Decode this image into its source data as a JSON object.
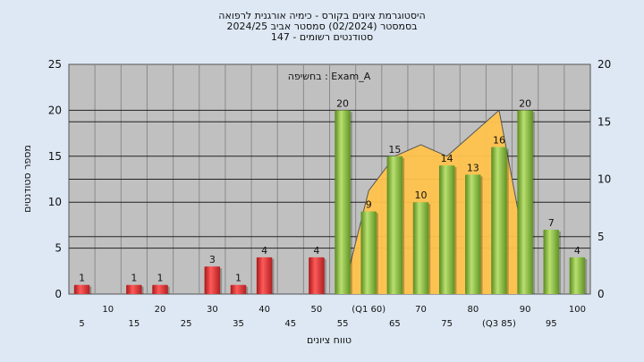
{
  "header": {
    "line1": "היסטוגרמת ציונים בקורס - כימיה אורגנית לרפואה",
    "line2": "בסמסטר  (02/2024)  סמסטר אביב 2024/25",
    "line3": "סטודנטים רשומים - 147"
  },
  "chart_data": {
    "type": "bar",
    "title": "",
    "annotation": "בחשיפה : Exam_A",
    "xlabel": "טווח ציונים",
    "ylabel": "מספר סטודנטים",
    "ylim": [
      0,
      25
    ],
    "y2lim": [
      0,
      20
    ],
    "yticks": [
      0,
      5,
      10,
      15,
      20,
      25
    ],
    "y2ticks": [
      0,
      5,
      10,
      15,
      20
    ],
    "categories": [
      "5",
      "10",
      "15",
      "20",
      "25",
      "30",
      "35",
      "40",
      "45",
      "50",
      "55",
      "(Q1 60)",
      "65",
      "70",
      "75",
      "80",
      "(Q3 85)",
      "90",
      "95",
      "100"
    ],
    "values": [
      1,
      0,
      1,
      1,
      0,
      3,
      1,
      4,
      0,
      4,
      20,
      9,
      15,
      10,
      14,
      13,
      16,
      20,
      7,
      4
    ],
    "value_labels": [
      "1",
      "",
      "1",
      "1",
      "",
      "3",
      "1",
      "4",
      "",
      "4",
      "20",
      "9",
      "15",
      "10",
      "14",
      "13",
      "16",
      "20",
      "7",
      "4"
    ],
    "pass_threshold": 55,
    "grid": true,
    "area": {
      "x": [
        "55",
        "(Q1 60)",
        "65",
        "70",
        "75",
        "80",
        "(Q3 85)",
        "90"
      ],
      "y": [
        0,
        9,
        12,
        13,
        12,
        14,
        16,
        4
      ]
    },
    "colors": {
      "fail_bar": "#e04040",
      "pass_bar": "#8cc63f",
      "area": "#ffc34d",
      "plot_bg": "#c0c0c0",
      "background": "#dde8f4"
    }
  }
}
